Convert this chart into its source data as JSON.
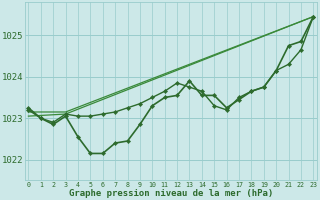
{
  "background_color": "#cce8e8",
  "grid_color": "#99cccc",
  "line_color_dark": "#2d6b2d",
  "line_color_thin": "#3a8a3a",
  "title": "Graphe pression niveau de la mer (hPa)",
  "ylim": [
    1021.5,
    1025.8
  ],
  "xlim": [
    -0.3,
    23.3
  ],
  "yticks": [
    1022,
    1023,
    1024,
    1025
  ],
  "xticks": [
    0,
    1,
    2,
    3,
    4,
    5,
    6,
    7,
    8,
    9,
    10,
    11,
    12,
    13,
    14,
    15,
    16,
    17,
    18,
    19,
    20,
    21,
    22,
    23
  ],
  "series": [
    {
      "label": "wavy_low_markers",
      "x": [
        0,
        1,
        2,
        3,
        4,
        5,
        6,
        7,
        8,
        9,
        10,
        11,
        12,
        13,
        14,
        15,
        16,
        17,
        18,
        19,
        20,
        21,
        22,
        23
      ],
      "y": [
        1023.25,
        1023.0,
        1022.85,
        1023.05,
        1022.55,
        1022.15,
        1022.15,
        1022.4,
        1022.45,
        1022.85,
        1023.3,
        1023.5,
        1023.55,
        1023.9,
        1023.55,
        1023.55,
        1023.25,
        1023.45,
        1023.65,
        1023.75,
        1024.15,
        1024.75,
        1024.85,
        1025.45
      ],
      "color": "#2d6b2d",
      "linewidth": 1.2,
      "marker": "D",
      "markersize": 2.2,
      "zorder": 4
    },
    {
      "label": "straight_upper1",
      "x": [
        0,
        3,
        23
      ],
      "y": [
        1023.05,
        1023.1,
        1025.45
      ],
      "color": "#3a8a3a",
      "linewidth": 0.9,
      "marker": null,
      "markersize": 0,
      "zorder": 2
    },
    {
      "label": "straight_upper2",
      "x": [
        0,
        3,
        23
      ],
      "y": [
        1023.15,
        1023.15,
        1025.45
      ],
      "color": "#3a8a3a",
      "linewidth": 0.9,
      "marker": null,
      "markersize": 0,
      "zorder": 2
    },
    {
      "label": "middle_markers",
      "x": [
        0,
        1,
        2,
        3,
        4,
        5,
        6,
        7,
        8,
        9,
        10,
        11,
        12,
        13,
        14,
        15,
        16,
        17,
        18,
        19,
        20,
        21,
        22,
        23
      ],
      "y": [
        1023.2,
        1023.0,
        1022.9,
        1023.1,
        1023.05,
        1023.05,
        1023.1,
        1023.15,
        1023.25,
        1023.35,
        1023.5,
        1023.65,
        1023.85,
        1023.75,
        1023.65,
        1023.3,
        1023.2,
        1023.5,
        1023.65,
        1023.75,
        1024.15,
        1024.3,
        1024.65,
        1025.45
      ],
      "color": "#2d6b2d",
      "linewidth": 1.0,
      "marker": "D",
      "markersize": 2.2,
      "zorder": 3
    }
  ]
}
